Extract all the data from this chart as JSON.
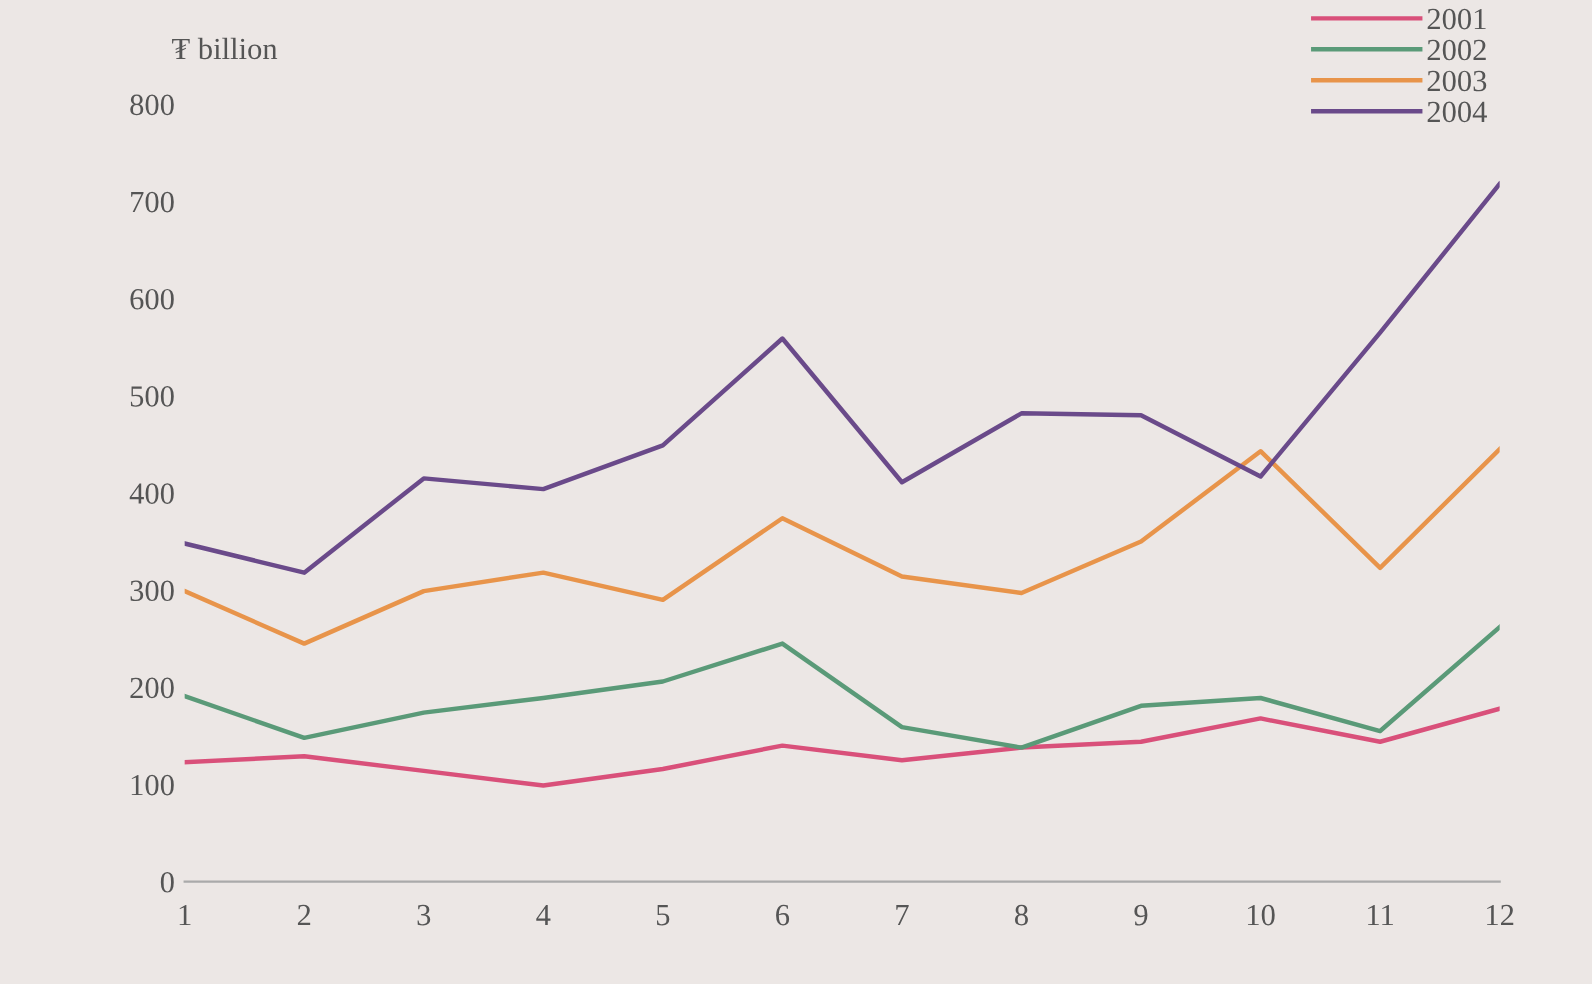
{
  "chart_data": {
    "type": "line",
    "ylabel": "₮ billion",
    "x": [
      1,
      2,
      3,
      4,
      5,
      6,
      7,
      8,
      9,
      10,
      11,
      12
    ],
    "series": [
      {
        "name": "2001",
        "color": "#d9507a",
        "values": [
          123,
          129,
          114,
          99,
          116,
          140,
          125,
          138,
          144,
          168,
          144,
          178
        ]
      },
      {
        "name": "2002",
        "color": "#5a9a78",
        "values": [
          191,
          148,
          174,
          189,
          206,
          245,
          159,
          138,
          181,
          189,
          155,
          262
        ]
      },
      {
        "name": "2003",
        "color": "#e8944a",
        "values": [
          299,
          245,
          299,
          318,
          290,
          374,
          314,
          297,
          350,
          443,
          323,
          445
        ]
      },
      {
        "name": "2004",
        "color": "#6a4a8a",
        "values": [
          348,
          318,
          415,
          404,
          449,
          559,
          411,
          482,
          480,
          417,
          565,
          718
        ]
      }
    ],
    "xlim": [
      1,
      12
    ],
    "xticks": [
      1,
      2,
      3,
      4,
      5,
      6,
      7,
      8,
      9,
      10,
      11,
      12
    ],
    "ylim": [
      0,
      800
    ],
    "yticks": [
      0,
      100,
      200,
      300,
      400,
      500,
      600,
      700,
      800
    ],
    "grid": false,
    "legend": "top right",
    "marker": "none",
    "line_style": "solid"
  }
}
